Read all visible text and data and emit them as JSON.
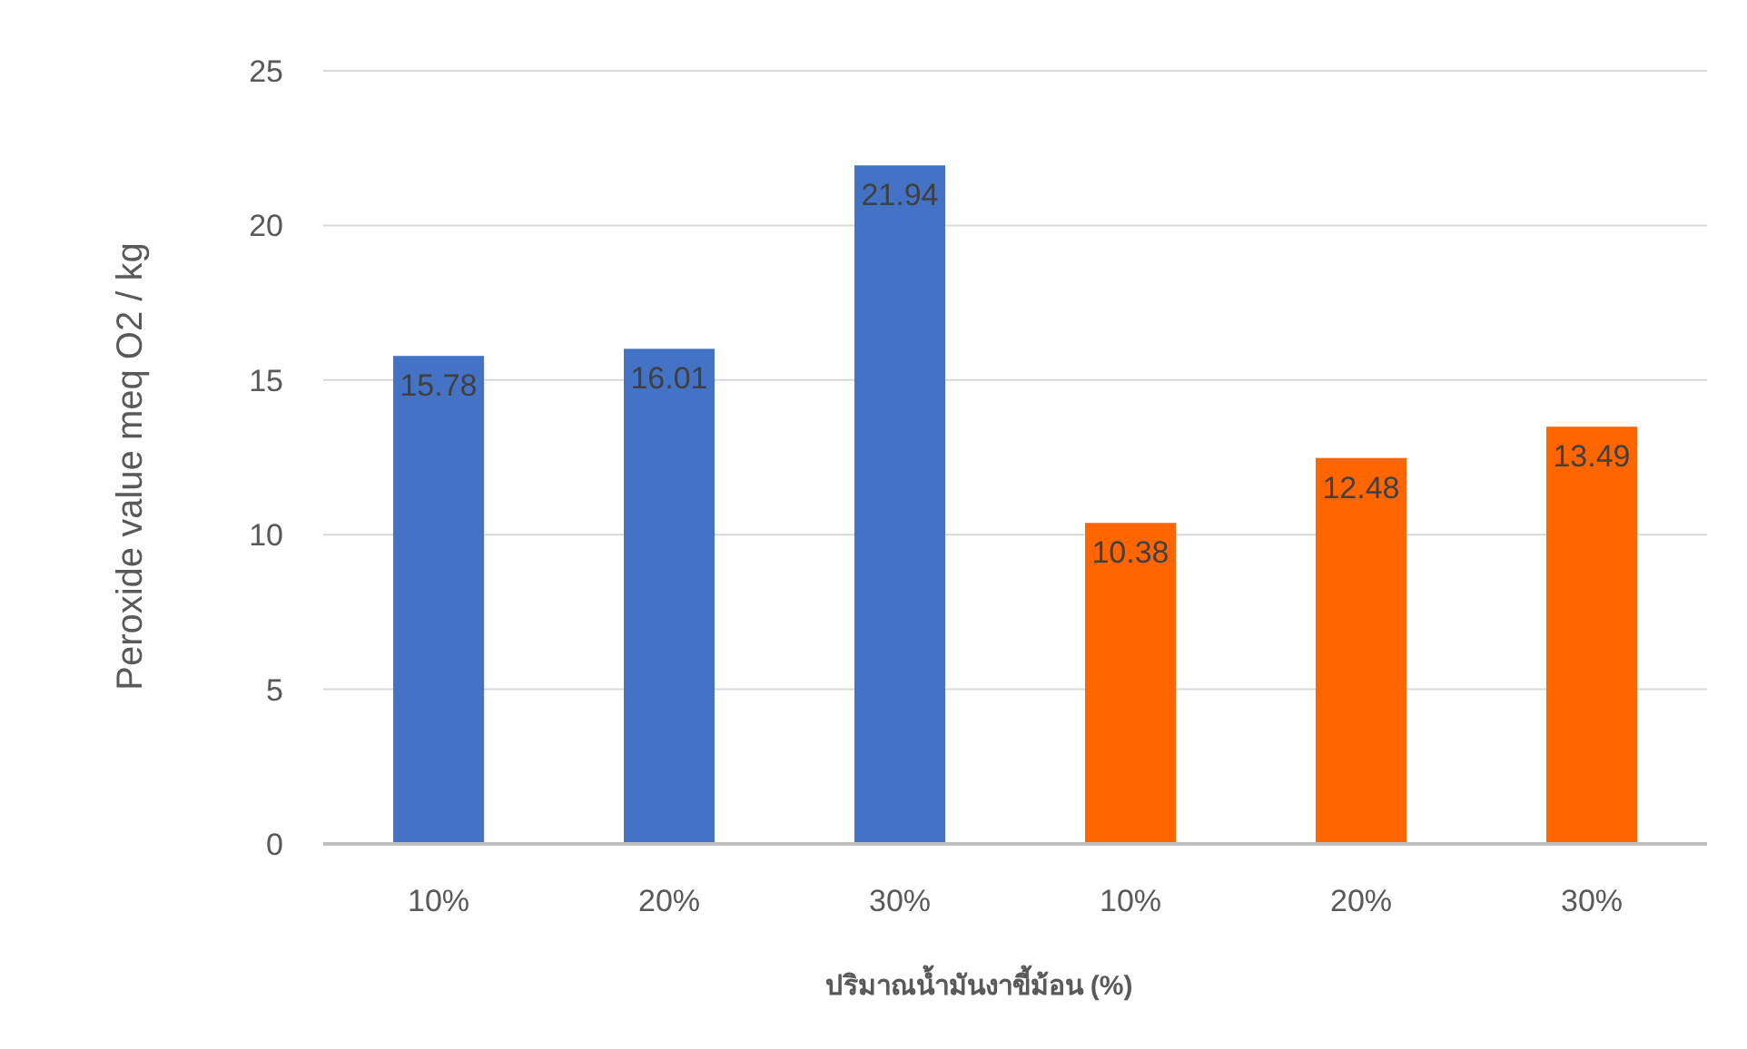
{
  "chart_data": {
    "type": "bar",
    "ylabel": "Peroxide value meq O2 / kg",
    "xlabel": "ปริมาณน้ำมันงาขี้ม้อน (%)",
    "categories": [
      "10%",
      "20%",
      "30%",
      "10%",
      "20%",
      "30%"
    ],
    "values": [
      15.78,
      16.01,
      21.94,
      10.38,
      12.48,
      13.49
    ],
    "colors": [
      "#4472c4",
      "#4472c4",
      "#4472c4",
      "#ff6600",
      "#ff6600",
      "#ff6600"
    ],
    "ylim": [
      0,
      25
    ],
    "yticks": [
      0,
      5,
      10,
      15,
      20,
      25
    ],
    "grid": "y",
    "data_labels": true
  }
}
